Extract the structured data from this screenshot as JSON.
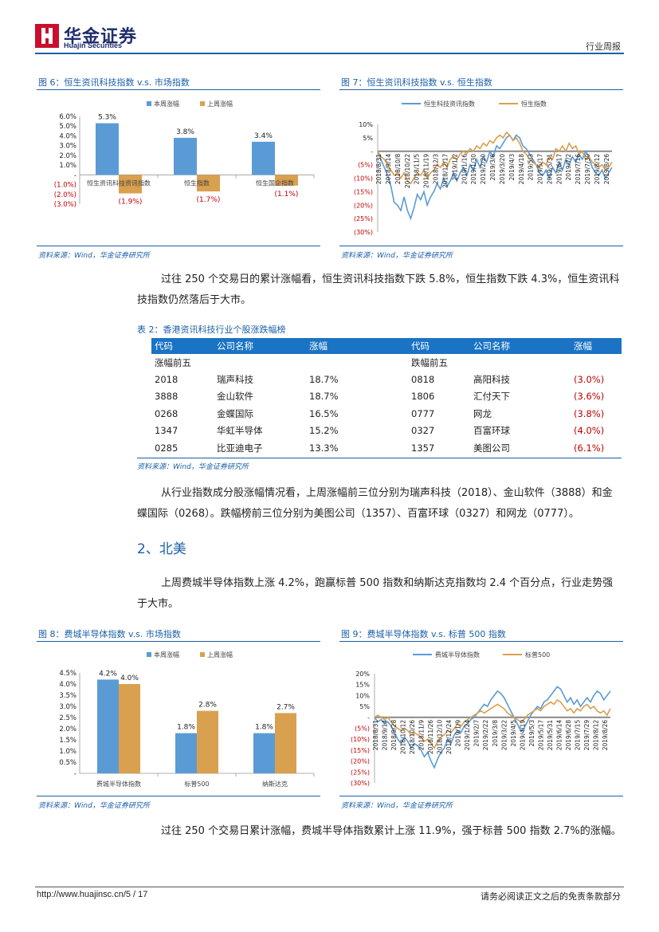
{
  "header": {
    "brand_cn": "华金证券",
    "brand_en": "Huajin Securities",
    "doc_type": "行业周报"
  },
  "source_note": "资料来源：Wind，华金证券研究所",
  "fig6": {
    "title": "图 6：恒生资讯科技指数 v.s. 市场指数",
    "legend": [
      "本周涨幅",
      "上周涨幅"
    ],
    "chart_data": {
      "type": "bar",
      "categories": [
        "恒生资讯科技资讯指数",
        "恒生指数",
        "恒生国企指数"
      ],
      "series": [
        {
          "name": "本周涨幅",
          "values": [
            5.3,
            3.8,
            3.4
          ],
          "labels": [
            "5.3%",
            "3.8%",
            "3.4%"
          ]
        },
        {
          "name": "上周涨幅",
          "values": [
            -1.9,
            -1.7,
            -1.1
          ],
          "labels": [
            "(1.9%)",
            "(1.7%)",
            "(1.1%)"
          ]
        }
      ],
      "ylim": [
        -3,
        6
      ],
      "yticks": [
        6,
        5,
        4,
        3,
        2,
        1,
        0,
        -1,
        -2,
        -3
      ],
      "ytick_labels": [
        "6.0%",
        "5.0%",
        "4.0%",
        "3.0%",
        "2.0%",
        "1.0%",
        "-",
        "(1.0%)",
        "(2.0%)",
        "(3.0%)"
      ]
    }
  },
  "fig7": {
    "title": "图 7：恒生资讯科技指数 v.s. 恒生指数",
    "legend": [
      "恒生科技资讯指数",
      "恒生指数"
    ],
    "chart_data": {
      "type": "line",
      "ylim": [
        -30,
        10
      ],
      "yticks": [
        10,
        5,
        0,
        -5,
        -10,
        -15,
        -20,
        -25,
        -30
      ],
      "ytick_labels": [
        "10%",
        "5%",
        "-",
        "(5%)",
        "(10%)",
        "(15%)",
        "(20%)",
        "(25%)",
        "(30%)"
      ],
      "xticks": [
        "2018/8/31",
        "2018/9/14",
        "2018/10/8",
        "2018/10/22",
        "2018/11/5",
        "2018/11/19",
        "2018/12/3",
        "2018/12/17",
        "2019/1/2",
        "2019/1/16",
        "2019/1/30",
        "2019/2/20",
        "2019/3/6",
        "2019/3/20",
        "2019/4/3",
        "2019/4/18",
        "2019/5/3",
        "2019/5/17",
        "2019/5/31",
        "2019/6/17",
        "2019/7/2",
        "2019/7/16",
        "2019/7/30",
        "2019/8/12",
        "2019/8/26"
      ],
      "series": [
        {
          "name": "恒生科技资讯指数",
          "values": [
            0,
            -3,
            -6,
            -9,
            -13,
            -19,
            -20,
            -22,
            -17,
            -22,
            -25,
            -21,
            -16,
            -18,
            -15,
            -20,
            -17,
            -15,
            -12,
            -14,
            -10,
            -13,
            -11,
            -8,
            -11,
            -8,
            -6,
            -9,
            -5,
            -7,
            -3,
            -6,
            -2,
            -4,
            0,
            -2,
            2,
            1,
            3,
            5,
            6,
            4,
            6,
            5,
            2,
            1,
            -1,
            -3,
            -5,
            -8,
            -9,
            -7,
            -10,
            -6,
            -8,
            -4,
            -7,
            -3,
            -5,
            -2,
            -4,
            -1,
            -3,
            0,
            -2,
            -6,
            -8,
            -9,
            -7,
            -10,
            -8,
            -6
          ]
        },
        {
          "name": "恒生指数",
          "values": [
            0,
            -2,
            -3,
            -5,
            -7,
            -9,
            -8,
            -10,
            -8,
            -11,
            -12,
            -10,
            -8,
            -9,
            -7,
            -10,
            -8,
            -7,
            -5,
            -6,
            -4,
            -6,
            -3,
            -2,
            -3,
            -1,
            0,
            -1,
            1,
            0,
            2,
            1,
            3,
            2,
            4,
            3,
            5,
            6,
            5,
            7,
            6,
            4,
            5,
            3,
            0,
            -1,
            -3,
            -4,
            -5,
            -6,
            -4,
            -5,
            -2,
            -3,
            1,
            0,
            2,
            0,
            3,
            1,
            2,
            -1,
            0,
            -3,
            -2,
            -4,
            -5,
            -6,
            -5,
            -7,
            -6,
            -4
          ]
        }
      ]
    }
  },
  "para1": "过往 250 个交易日的累计涨幅看，恒生资讯科技指数下跌 5.8%，恒生指数下跌 4.3%，恒生资讯科技指数仍然落后于大市。",
  "table2": {
    "title": "表 2：香港资讯科技行业个股涨跌幅榜",
    "headers": [
      "代码",
      "公司名称",
      "涨幅",
      "代码",
      "公司名称",
      "涨幅"
    ],
    "section_left": "涨幅前五",
    "section_right": "跌幅前五",
    "rows": [
      [
        "2018",
        "瑞声科技",
        "18.7%",
        "0818",
        "高阳科技",
        "(3.0%)"
      ],
      [
        "3888",
        "金山软件",
        "18.7%",
        "1806",
        "汇付天下",
        "(3.6%)"
      ],
      [
        "0268",
        "金蝶国际",
        "16.5%",
        "0777",
        "网龙",
        "(3.8%)"
      ],
      [
        "1347",
        "华虹半导体",
        "15.2%",
        "0327",
        "百富环球",
        "(4.0%)"
      ],
      [
        "0285",
        "比亚迪电子",
        "13.3%",
        "1357",
        "美图公司",
        "(6.1%)"
      ]
    ]
  },
  "para2": "从行业指数成分股涨幅情况看，上周涨幅前三位分别为瑞声科技（2018）、金山软件（3888）和金蝶国际（0268）。跌幅榜前三位分别为美图公司（1357）、百富环球（0327）和网龙（0777）。",
  "section2": "2、北美",
  "para3": "上周费城半导体指数上涨 4.2%，跑赢标普 500 指数和纳斯达克指数均 2.4 个百分点，行业走势强于大市。",
  "fig8": {
    "title": "图 8：费城半导体指数 v.s. 市场指数",
    "legend": [
      "本周涨幅",
      "上周涨幅"
    ],
    "chart_data": {
      "type": "bar",
      "categories": [
        "费城半导体指数",
        "标普500",
        "纳斯达克"
      ],
      "series": [
        {
          "name": "本周涨幅",
          "values": [
            4.2,
            1.8,
            1.8
          ],
          "labels": [
            "4.2%",
            "1.8%",
            "1.8%"
          ]
        },
        {
          "name": "上周涨幅",
          "values": [
            4.0,
            2.8,
            2.7
          ],
          "labels": [
            "4.0%",
            "2.8%",
            "2.7%"
          ]
        }
      ],
      "ylim": [
        0,
        4.5
      ],
      "yticks": [
        4.5,
        4,
        3.5,
        3,
        2.5,
        2,
        1.5,
        1,
        0.5,
        0
      ],
      "ytick_labels": [
        "4.5%",
        "4.0%",
        "3.5%",
        "3.0%",
        "2.5%",
        "2.0%",
        "1.5%",
        "1.0%",
        "0.5%",
        "-"
      ]
    }
  },
  "fig9": {
    "title": "图 9：费城半导体指数 v.s. 标普 500 指数",
    "legend": [
      "费城半导体指数",
      "标普500"
    ],
    "chart_data": {
      "type": "line",
      "ylim": [
        -30,
        20
      ],
      "yticks": [
        20,
        15,
        10,
        5,
        0,
        -5,
        -10,
        -15,
        -20,
        -25,
        -30
      ],
      "ytick_labels": [
        "20%",
        "15%",
        "10%",
        "5%",
        "-",
        "(5%)",
        "(10%)",
        "(15%)",
        "(20%)",
        "(25%)",
        "(30%)"
      ],
      "xticks": [
        "2018/8/31",
        "2018/9/14",
        "2018/9/28",
        "2018/10/12",
        "2018/10/26",
        "2018/11/9",
        "2018/11/26",
        "2018/12/10",
        "2018/12/24",
        "2019/1/9",
        "2019/1/24",
        "2019/2/7",
        "2019/2/22",
        "2019/3/8",
        "2019/3/22",
        "2019/4/5",
        "2019/4/19",
        "2019/5/3",
        "2019/5/17",
        "2019/5/31",
        "2019/6/14",
        "2019/6/28",
        "2019/7/15",
        "2019/7/29",
        "2019/8/12",
        "2019/8/26"
      ],
      "series": [
        {
          "name": "费城半导体指数",
          "values": [
            0,
            -2,
            -1,
            -3,
            -2,
            -4,
            -7,
            -10,
            -12,
            -9,
            -11,
            -14,
            -12,
            -13,
            -15,
            -18,
            -16,
            -20,
            -23,
            -19,
            -16,
            -14,
            -10,
            -12,
            -8,
            -6,
            -7,
            -4,
            -3,
            -1,
            0,
            2,
            4,
            6,
            5,
            8,
            10,
            12,
            11,
            9,
            6,
            3,
            0,
            -3,
            -6,
            -5,
            -2,
            1,
            3,
            5,
            4,
            7,
            8,
            10,
            12,
            14,
            13,
            10,
            7,
            9,
            6,
            8,
            5,
            7,
            9,
            7,
            10,
            12,
            11,
            8,
            10,
            12
          ]
        },
        {
          "name": "标普500",
          "values": [
            0,
            1,
            0,
            -1,
            0,
            -2,
            -4,
            -5,
            -6,
            -5,
            -6,
            -8,
            -7,
            -8,
            -9,
            -11,
            -10,
            -12,
            -14,
            -11,
            -9,
            -8,
            -6,
            -7,
            -5,
            -3,
            -4,
            -2,
            -1,
            0,
            1,
            2,
            3,
            2,
            3,
            4,
            5,
            6,
            5,
            4,
            2,
            1,
            0,
            -1,
            -2,
            -1,
            1,
            2,
            3,
            4,
            3,
            5,
            6,
            7,
            6,
            8,
            7,
            5,
            3,
            4,
            2,
            4,
            3,
            5,
            6,
            4,
            5,
            3,
            2,
            3,
            1,
            4
          ]
        }
      ]
    }
  },
  "para4": "过往 250 个交易日累计涨幅，费城半导体指数累计上涨 11.9%，强于标普 500 指数 2.7%的涨幅。",
  "footer": {
    "url_page": "http://www.huajinsc.cn/5 / 17",
    "disclaimer": "请务必阅读正文之后的免责条款部分"
  },
  "colors": {
    "blue": "#5b9bd5",
    "gold": "#d9a04f",
    "accent": "#1b5fa8",
    "red": "#c00000"
  }
}
